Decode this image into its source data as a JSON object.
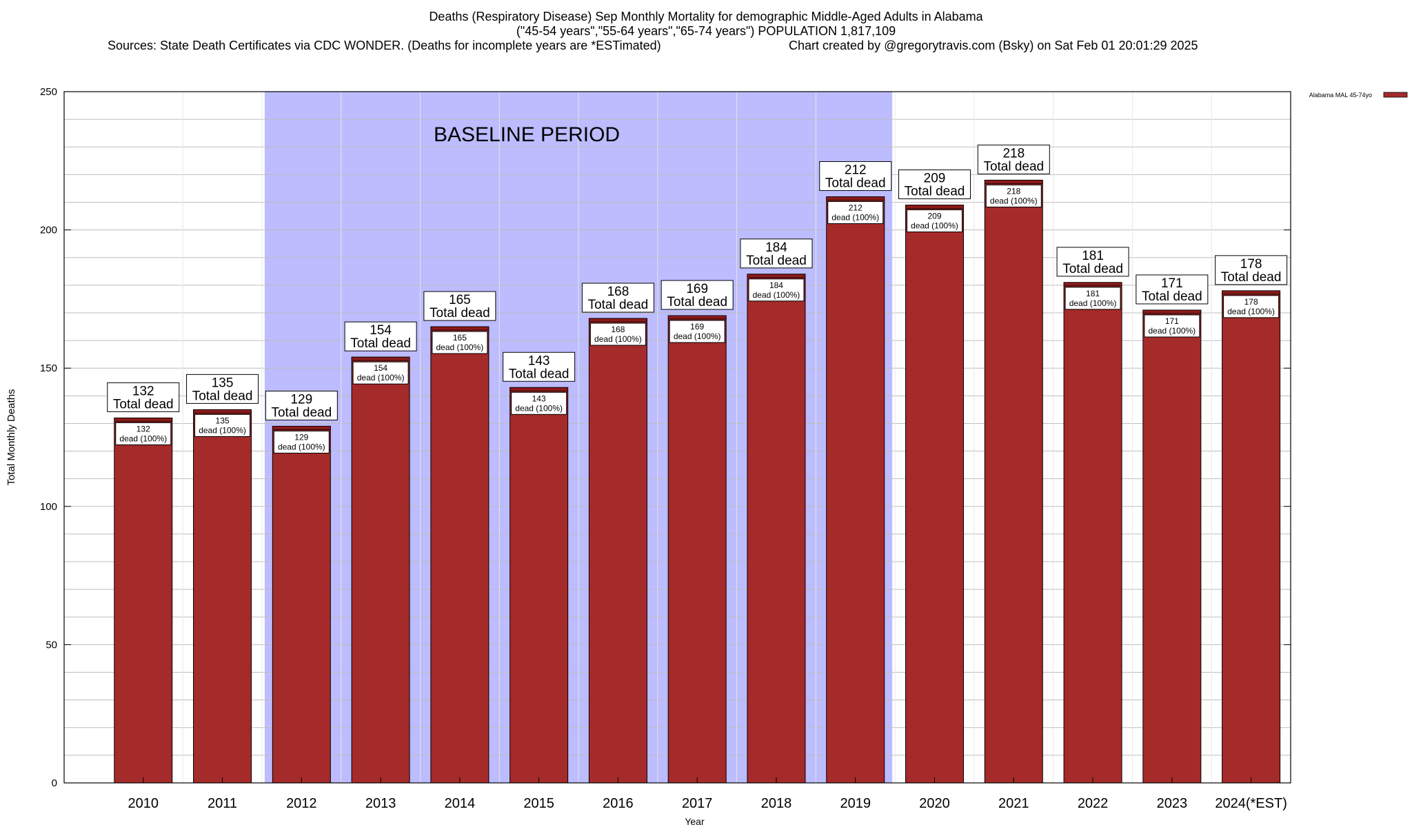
{
  "chart_data": {
    "type": "bar",
    "title": "Deaths (Respiratory Disease) Sep Monthly Mortality for demographic Middle-Aged Adults in Alabama",
    "subtitle": "(\"45-54 years\",\"55-64 years\",\"65-74 years\") POPULATION 1,817,109",
    "source": "Sources: State Death Certificates via CDC WONDER. (Deaths for incomplete years are *ESTimated)",
    "credit": "Chart created by @gregorytravis.com (Bsky) on Sat Feb 01 20:01:29 2025",
    "xlabel": "Year",
    "ylabel": "Total Monthly Deaths",
    "ylim": [
      0,
      250
    ],
    "yticks": [
      0,
      50,
      100,
      150,
      200,
      250
    ],
    "grid": true,
    "legend": {
      "placement": "top-right",
      "label": "Alabama MAL 45-74yo"
    },
    "categories": [
      "2010",
      "2011",
      "2012",
      "2013",
      "2014",
      "2015",
      "2016",
      "2017",
      "2018",
      "2019",
      "2020",
      "2021",
      "2022",
      "2023",
      "2024(*EST)"
    ],
    "series": [
      {
        "name": "Alabama MAL 45-74yo",
        "values": [
          132,
          135,
          129,
          154,
          165,
          143,
          168,
          169,
          184,
          212,
          209,
          218,
          181,
          171,
          178
        ]
      }
    ],
    "bar_label_top": "Total dead",
    "bar_label_inner": "dead (100%)",
    "baseline_period": {
      "label": "BASELINE PERIOD",
      "start": "2012",
      "end": "2019"
    },
    "colors": {
      "bar": "#a52a2a",
      "bar_top": "#8b1a1a",
      "baseline": "#bcbcff",
      "grid": "#bdbdbd"
    }
  }
}
